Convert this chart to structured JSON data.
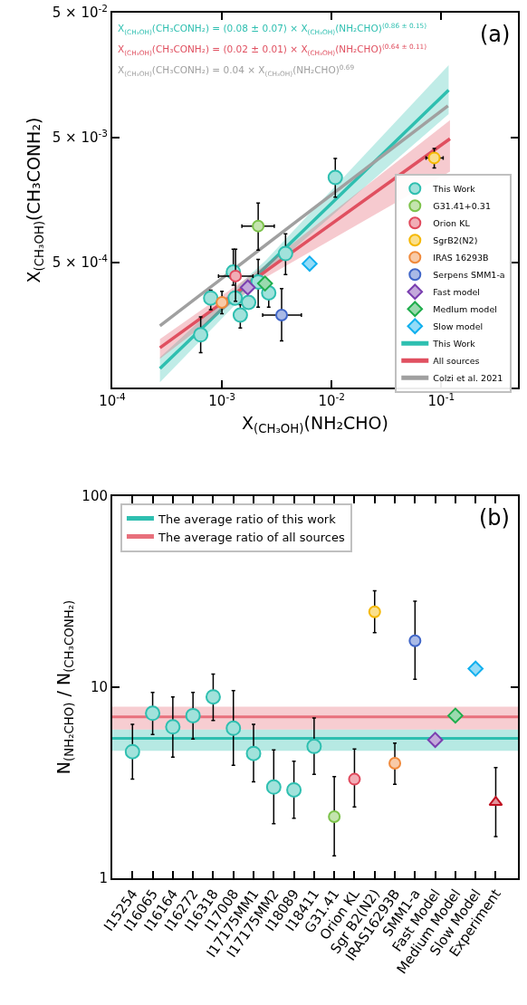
{
  "chart_data": [
    {
      "type": "scatter",
      "log": "xy",
      "legend": "bottom right",
      "xlabel": "X$_{(CH₃OH)}$(NH₂CHO)",
      "ylabel": "X$_{(CH₃OH)}$(CH₃CONH₂)",
      "xlim": [
        0.0001,
        0.5
      ],
      "ylim": [
        5e-05,
        0.05
      ],
      "xticks": [
        {
          "value": 0.0001,
          "label": "10$^{-4}$"
        },
        {
          "value": 0.001,
          "label": "10$^{-3}$"
        },
        {
          "value": 0.01,
          "label": "10$^{-2}$"
        },
        {
          "value": 0.1,
          "label": "10$^{-1}$"
        }
      ],
      "yticks": [
        {
          "value": 0.0005,
          "label": "5 × 10$^{-4}$"
        },
        {
          "value": 0.005,
          "label": "5 × 10$^{-3}$"
        },
        {
          "value": 0.05,
          "label": "5 × 10$^{-2}$"
        }
      ],
      "annotations": [
        "X$_{(CH₃OH)}$(CH₃CONH₂) = (0.08 ± 0.07) × X$_{(CH₃OH)}$(NH₂CHO)$^{(0.86 ± 0.15)}$",
        "X$_{(CH₃OH)}$(CH₃CONH₂) = (0.02 ± 0.01) × X$_{(CH₃OH)}$(NH₂CHO)$^{(0.64 ± 0.11)}$",
        "X$_{(CH₃OH)}$(CH₃CONH₂) = 0.04 × X$_{(CH₃OH)}$(NH₂CHO)$^{0.69}$",
        "(a)"
      ],
      "series": [
        {
          "name": "This Work",
          "marker": "circle",
          "color": "#2ebfb0",
          "x": [
            0.00064,
            0.00079,
            0.00127,
            0.00132,
            0.00147,
            0.00175,
            0.00214,
            0.00267,
            0.0038,
            0.0108
          ],
          "values": [
            0.000132,
            0.00026,
            0.00042,
            0.00026,
            0.00019,
            0.00024,
            0.00035,
            0.000286,
            0.00059,
            0.0024
          ],
          "errors": [
            [
              9.5e-05,
              0.000184
            ],
            [
              0.00021,
              0.0003
            ],
            [
              0.00033,
              0.00064
            ],
            null,
            [
              0.00015,
              0.00023
            ],
            null,
            [
              0.00022,
              0.00053
            ],
            [
              0.00022,
              0.00034
            ],
            [
              0.0004,
              0.00085
            ],
            [
              0.00167,
              0.0034
            ]
          ]
        },
        {
          "name": "G31.41+0.31",
          "marker": "circle",
          "color": "#7cc24a",
          "x": [
            0.00214
          ],
          "values": [
            0.00098
          ],
          "errors": [
            [
              0.00063,
              0.0015
            ]
          ],
          "xerrors": [
            [
              0.00152,
              0.003
            ]
          ]
        },
        {
          "name": "Orion KL",
          "marker": "circle",
          "color": "#e0485c",
          "x": [
            0.00133
          ],
          "values": [
            0.00039
          ],
          "errors": [
            [
              0.000245,
              0.00064
            ]
          ],
          "xerrors": [
            [
              0.00093,
              0.00192
            ]
          ]
        },
        {
          "name": "SgrB2(N2)",
          "marker": "circle",
          "color": "#f5b800",
          "x": [
            0.0863
          ],
          "values": [
            0.00344
          ],
          "errors": [
            [
              0.00286,
              0.0041
            ]
          ],
          "xerrors": [
            [
              0.0726,
              0.104
            ]
          ]
        },
        {
          "name": "IRAS 16293B",
          "marker": "circle",
          "color": "#f08a3c",
          "x": [
            0.001
          ],
          "values": [
            0.00024
          ],
          "errors": [
            [
              0.000195,
              0.000294
            ]
          ]
        },
        {
          "name": "Serpens SMM1-a",
          "marker": "circle",
          "color": "#4066c8",
          "x": [
            0.0035
          ],
          "values": [
            0.00019
          ],
          "errors": [
            [
              0.000118,
              0.00031
            ]
          ],
          "xerrors": [
            [
              0.00235,
              0.0053
            ]
          ]
        },
        {
          "name": "Fast model",
          "marker": "diamond",
          "color": "#7a3fb0",
          "x": [
            0.00172
          ],
          "values": [
            0.000316
          ]
        },
        {
          "name": "Medlum model",
          "marker": "diamond",
          "color": "#1fad4c",
          "x": [
            0.00247
          ],
          "values": [
            0.00034
          ]
        },
        {
          "name": "Slow model",
          "marker": "diamond",
          "color": "#12b0ee",
          "x": [
            0.0063
          ],
          "values": [
            0.00049
          ]
        },
        {
          "name": "This Work",
          "type": "line",
          "color": "#2ebfb0",
          "x": [
            0.000272,
            0.0025,
            0.1167
          ],
          "values": [
            7.1e-05,
            0.00046,
            0.012
          ],
          "lower": [
            5.5e-05,
            0.00041,
            0.0077
          ],
          "upper": [
            8.7e-05,
            0.00052,
            0.019
          ]
        },
        {
          "name": "All sources",
          "type": "line",
          "color": "#e05060",
          "x": [
            0.000272,
            0.0025,
            0.12
          ],
          "values": [
            0.000104,
            0.000426,
            0.0049
          ],
          "lower": [
            8.5e-05,
            0.00038,
            0.00268
          ],
          "upper": [
            0.000122,
            0.00048,
            0.0069
          ]
        },
        {
          "name": "Colzi et al. 2021",
          "type": "line",
          "color": "#a0a0a0",
          "x": [
            0.000272,
            0.115
          ],
          "values": [
            0.000156,
            0.009
          ]
        }
      ]
    },
    {
      "type": "scatter",
      "log": true,
      "legend": "top left",
      "ylabel": "N$_{(NH₂CHO)}$ / N$_{(CH₃CONH₂)}$",
      "ylim": [
        1,
        100
      ],
      "yticks": [
        1,
        10,
        100
      ],
      "annotations": [
        "(b)"
      ],
      "categories": [
        "I15254",
        "I16065",
        "I16164",
        "I16272",
        "I16318",
        "I17008",
        "I17175MM1",
        "I17175MM2",
        "I18089",
        "I18411",
        "G31.41",
        "Orion KL",
        "Sgr B2(N2)",
        "IRAS16293B",
        "SMM1-a",
        "Fast Model",
        "Medium Model",
        "Slow Model",
        "Experiment"
      ],
      "bands": [
        {
          "axis": "y",
          "from": 4.65,
          "to": 6.0,
          "color": "#2ebfb0"
        },
        {
          "axis": "y",
          "from": 6.0,
          "to": 7.9,
          "color": "#e8707c"
        }
      ],
      "ref_lines": [
        {
          "axis": "y",
          "value": 5.4,
          "label": "The average ratio of this work",
          "color": "#2ebfb0"
        },
        {
          "axis": "y",
          "value": 7.0,
          "label": "The average ratio of all sources",
          "color": "#e8707c"
        }
      ],
      "series": [
        {
          "marker": "circle",
          "color": "#2ebfb0",
          "values": [
            4.6,
            7.3,
            6.2,
            7.1,
            8.9,
            6.1,
            4.5,
            3.0,
            2.9,
            4.9,
            null,
            null,
            null,
            null,
            null,
            null,
            null,
            null,
            null
          ],
          "errors": [
            [
              3.3,
              6.4
            ],
            [
              5.65,
              9.4
            ],
            [
              4.3,
              8.9
            ],
            [
              5.35,
              9.4
            ],
            [
              6.7,
              11.7
            ],
            [
              3.9,
              9.6
            ],
            [
              3.2,
              6.4
            ],
            [
              1.93,
              4.7
            ],
            [
              2.06,
              4.1
            ],
            [
              3.5,
              6.9
            ],
            null,
            null,
            null,
            null,
            null,
            null,
            null,
            null,
            null
          ]
        },
        {
          "marker": "circle",
          "color": "#7cc24a",
          "values": [
            null,
            null,
            null,
            null,
            null,
            null,
            null,
            null,
            null,
            null,
            2.1,
            null,
            null,
            null,
            null,
            null,
            null,
            null,
            null
          ],
          "errors": [
            null,
            null,
            null,
            null,
            null,
            null,
            null,
            null,
            null,
            null,
            [
              1.31,
              3.4
            ],
            null,
            null,
            null,
            null,
            null,
            null,
            null,
            null
          ]
        },
        {
          "marker": "circle",
          "color": "#e0485c",
          "values": [
            null,
            null,
            null,
            null,
            null,
            null,
            null,
            null,
            null,
            null,
            null,
            3.3,
            null,
            null,
            null,
            null,
            null,
            null,
            null
          ],
          "errors": [
            null,
            null,
            null,
            null,
            null,
            null,
            null,
            null,
            null,
            null,
            null,
            [
              2.36,
              4.75
            ],
            null,
            null,
            null,
            null,
            null,
            null,
            null
          ]
        },
        {
          "marker": "circle",
          "color": "#f5b800",
          "values": [
            null,
            null,
            null,
            null,
            null,
            null,
            null,
            null,
            null,
            null,
            null,
            null,
            24.8,
            null,
            null,
            null,
            null,
            null,
            null
          ],
          "errors": [
            null,
            null,
            null,
            null,
            null,
            null,
            null,
            null,
            null,
            null,
            null,
            null,
            [
              19.3,
              32
            ],
            null,
            null,
            null,
            null,
            null,
            null
          ]
        },
        {
          "marker": "circle",
          "color": "#f08a3c",
          "values": [
            null,
            null,
            null,
            null,
            null,
            null,
            null,
            null,
            null,
            null,
            null,
            null,
            null,
            4.0,
            null,
            null,
            null,
            null,
            null
          ],
          "errors": [
            null,
            null,
            null,
            null,
            null,
            null,
            null,
            null,
            null,
            null,
            null,
            null,
            null,
            [
              3.1,
              5.1
            ],
            null,
            null,
            null,
            null,
            null
          ]
        },
        {
          "marker": "circle",
          "color": "#4066c8",
          "values": [
            null,
            null,
            null,
            null,
            null,
            null,
            null,
            null,
            null,
            null,
            null,
            null,
            null,
            null,
            17.5,
            null,
            null,
            null,
            null
          ],
          "errors": [
            null,
            null,
            null,
            null,
            null,
            null,
            null,
            null,
            null,
            null,
            null,
            null,
            null,
            null,
            [
              11.0,
              28.2
            ],
            null,
            null,
            null,
            null
          ]
        },
        {
          "marker": "diamond",
          "color": "#7a3fb0",
          "values": [
            null,
            null,
            null,
            null,
            null,
            null,
            null,
            null,
            null,
            null,
            null,
            null,
            null,
            null,
            null,
            5.3,
            null,
            null,
            null
          ]
        },
        {
          "marker": "diamond",
          "color": "#1fad4c",
          "values": [
            null,
            null,
            null,
            null,
            null,
            null,
            null,
            null,
            null,
            null,
            null,
            null,
            null,
            null,
            null,
            null,
            7.1,
            null,
            null
          ]
        },
        {
          "marker": "diamond",
          "color": "#12b0ee",
          "values": [
            null,
            null,
            null,
            null,
            null,
            null,
            null,
            null,
            null,
            null,
            null,
            null,
            null,
            null,
            null,
            null,
            null,
            12.5,
            null
          ]
        },
        {
          "marker": "triangle",
          "color": "#c01020",
          "values": [
            null,
            null,
            null,
            null,
            null,
            null,
            null,
            null,
            null,
            null,
            null,
            null,
            null,
            null,
            null,
            null,
            null,
            null,
            2.5
          ],
          "errors": [
            null,
            null,
            null,
            null,
            null,
            null,
            null,
            null,
            null,
            null,
            null,
            null,
            null,
            null,
            null,
            null,
            null,
            null,
            [
              1.65,
              3.8
            ]
          ]
        }
      ]
    }
  ]
}
